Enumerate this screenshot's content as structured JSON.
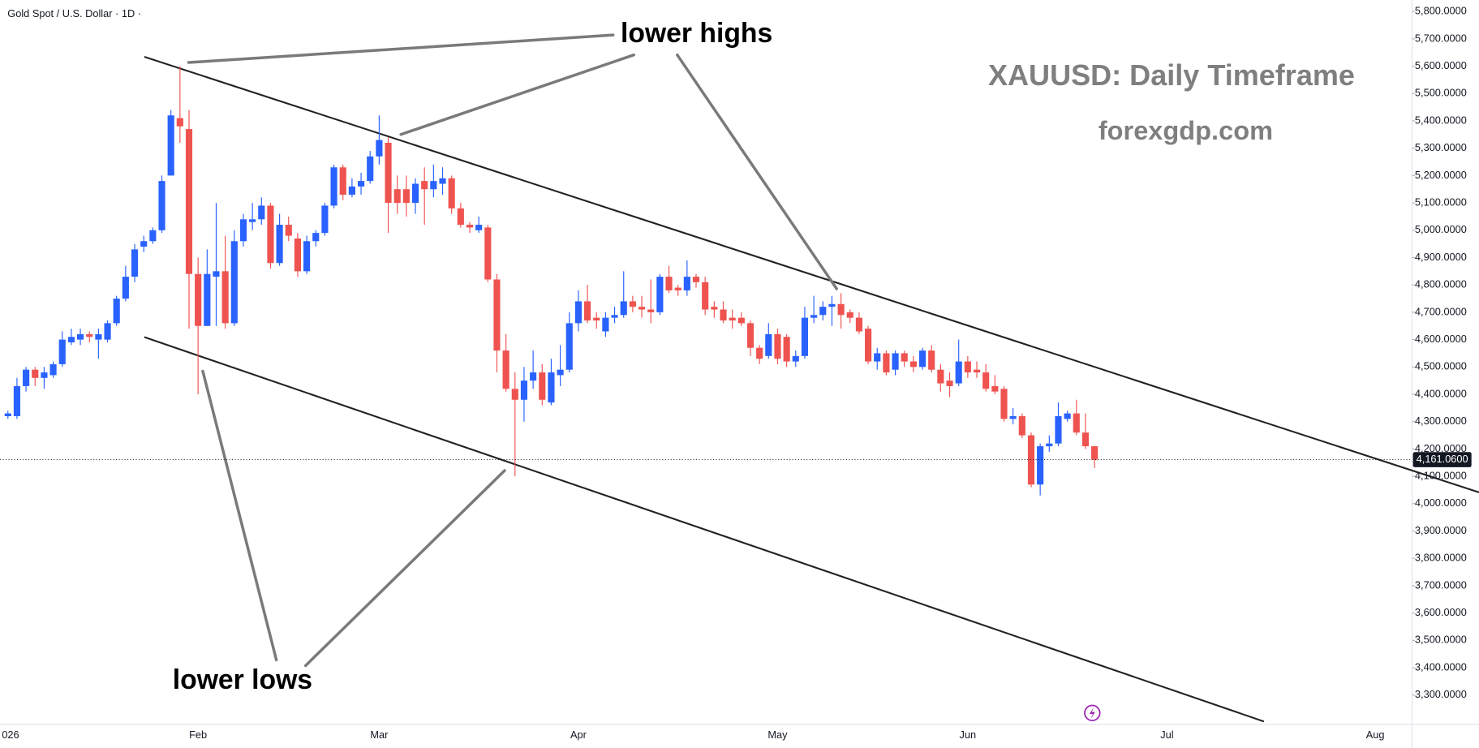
{
  "chart_data": {
    "type": "candlestick",
    "title": "Gold Spot / U.S. Dollar · 1D ·",
    "annotations": [
      "lower highs",
      "lower lows",
      "XAUUSD: Daily Timeframe",
      "forexgdp.com"
    ],
    "categories": [
      "026",
      null,
      null,
      null,
      null,
      null,
      null,
      null,
      null,
      null,
      null,
      null,
      null,
      null,
      null,
      null,
      null,
      null,
      null,
      null,
      null,
      "Feb",
      null,
      null,
      null,
      null,
      null,
      null,
      null,
      null,
      null,
      null,
      null,
      null,
      null,
      null,
      null,
      null,
      null,
      null,
      null,
      "Mar",
      null,
      null,
      null,
      null,
      null,
      null,
      null,
      null,
      null,
      null,
      null,
      null,
      null,
      null,
      null,
      null,
      null,
      null,
      null,
      null,
      null,
      "Apr",
      null,
      null,
      null,
      null,
      null,
      null,
      null,
      null,
      null,
      null,
      null,
      null,
      null,
      null,
      null,
      null,
      null,
      null,
      null,
      null,
      null,
      "May",
      null,
      null,
      null,
      null,
      null,
      null,
      null,
      null,
      null,
      null,
      null,
      null,
      null,
      null,
      null,
      null,
      null,
      null,
      null,
      null,
      "Jun",
      null,
      null,
      null,
      null,
      null,
      null,
      null,
      null,
      null,
      null,
      null,
      null,
      null,
      null,
      null,
      null,
      null,
      null,
      null,
      null,
      null,
      "Jul",
      null,
      null,
      null,
      null,
      null,
      null,
      null,
      null,
      null,
      null,
      null,
      null,
      null,
      null,
      null,
      null,
      null,
      null,
      null,
      null,
      null,
      null,
      "Aug"
    ],
    "open": [
      4320,
      4320,
      4430,
      4490,
      4460,
      4470,
      4510,
      4590,
      4600,
      4620,
      4600,
      4600,
      4660,
      4750,
      4830,
      4940,
      4960,
      5000,
      5200,
      5410,
      5370,
      4840,
      4650,
      4830,
      4850,
      4660,
      4960,
      5030,
      5040,
      5090,
      4880,
      5020,
      4970,
      4850,
      4960,
      4990,
      5090,
      5230,
      5130,
      5160,
      5180,
      5270,
      5320,
      5150,
      5150,
      5100,
      5180,
      5150,
      5170,
      5190,
      5080,
      5020,
      5000,
      5010,
      4820,
      4560,
      4420,
      4380,
      4450,
      4480,
      4370,
      4470,
      4490,
      4660,
      4740,
      4680,
      4630,
      4680,
      4690,
      4740,
      4720,
      4710,
      4700,
      4830,
      4790,
      4780,
      4830,
      4810,
      4720,
      4710,
      4680,
      4680,
      4660,
      4570,
      4540,
      4620,
      4610,
      4520,
      4540,
      4680,
      4690,
      4720,
      4730,
      4700,
      4680,
      4640,
      4520,
      4550,
      4490,
      4550,
      4520,
      4500,
      4560,
      4490,
      4450,
      4440,
      4520,
      4490,
      4480,
      4430,
      4420,
      4310,
      4320,
      4250,
      4070,
      4210,
      4220,
      4310,
      4330,
      4260,
      4210,
      null,
      null,
      null,
      null,
      null,
      null,
      null,
      null,
      null,
      null,
      null,
      null,
      null,
      null,
      null,
      null,
      null,
      null,
      null,
      null,
      null,
      null,
      null,
      null,
      null,
      null,
      null,
      null,
      null,
      null,
      null
    ],
    "high": [
      4340,
      4460,
      4500,
      4500,
      4500,
      4520,
      4630,
      4640,
      4640,
      4630,
      4640,
      4670,
      4760,
      4870,
      4950,
      4980,
      5010,
      5200,
      5440,
      5600,
      5440,
      4900,
      4930,
      5100,
      4980,
      5000,
      5060,
      5100,
      5120,
      5100,
      5060,
      5050,
      4990,
      4980,
      5000,
      5100,
      5240,
      5240,
      5190,
      5210,
      5290,
      5420,
      5340,
      5200,
      5200,
      5190,
      5230,
      5240,
      5230,
      5200,
      5100,
      5030,
      5050,
      5020,
      4840,
      4620,
      4480,
      4500,
      4560,
      4510,
      4530,
      4580,
      4700,
      4780,
      4800,
      4700,
      4700,
      4720,
      4850,
      4760,
      4760,
      4820,
      4840,
      4870,
      4800,
      4890,
      4840,
      4830,
      4740,
      4740,
      4710,
      4700,
      4670,
      4580,
      4660,
      4640,
      4620,
      4560,
      4720,
      4760,
      4740,
      4760,
      4770,
      4710,
      4700,
      4650,
      4570,
      4560,
      4560,
      4560,
      4540,
      4570,
      4580,
      4510,
      4480,
      4600,
      4540,
      4520,
      4510,
      4470,
      4430,
      4350,
      4330,
      4260,
      4220,
      4250,
      4370,
      4340,
      4380,
      4330,
      4210,
      null,
      null,
      null,
      null,
      null,
      null,
      null,
      null,
      null,
      null,
      null,
      null,
      null,
      null,
      null,
      null,
      null,
      null,
      null,
      null,
      null,
      null,
      null,
      null,
      null,
      null,
      null,
      null,
      null,
      null,
      null
    ],
    "low": [
      4310,
      4310,
      4410,
      4430,
      4420,
      4460,
      4500,
      4580,
      4580,
      4590,
      4530,
      4590,
      4650,
      4740,
      4810,
      4920,
      4950,
      4990,
      5200,
      5320,
      4640,
      4400,
      4650,
      4650,
      4640,
      4650,
      4940,
      5000,
      5020,
      4860,
      4870,
      4960,
      4830,
      4840,
      4940,
      4980,
      5080,
      5110,
      5120,
      5130,
      5170,
      5240,
      4990,
      5060,
      5050,
      5060,
      5020,
      5120,
      5130,
      5060,
      5010,
      4990,
      4990,
      4810,
      4480,
      4410,
      4100,
      4300,
      4420,
      4360,
      4360,
      4430,
      4480,
      4630,
      4660,
      4640,
      4610,
      4660,
      4680,
      4700,
      4680,
      4660,
      4690,
      4770,
      4760,
      4760,
      4790,
      4690,
      4680,
      4660,
      4640,
      4650,
      4540,
      4510,
      4530,
      4510,
      4500,
      4500,
      4530,
      4660,
      4670,
      4650,
      4640,
      4660,
      4620,
      4510,
      4490,
      4470,
      4470,
      4500,
      4480,
      4490,
      4480,
      4410,
      4390,
      4430,
      4460,
      4460,
      4410,
      4400,
      4300,
      4290,
      4240,
      4060,
      4030,
      4190,
      4210,
      4300,
      4250,
      4200,
      4130,
      null,
      null,
      null,
      null,
      null,
      null,
      null,
      null,
      null,
      null,
      null,
      null,
      null,
      null,
      null,
      null,
      null,
      null,
      null,
      null,
      null,
      null,
      null,
      null,
      null,
      null,
      null,
      null,
      null,
      null,
      null
    ],
    "close": [
      4330,
      4430,
      4490,
      4460,
      4480,
      4510,
      4600,
      4610,
      4620,
      4610,
      4620,
      4660,
      4750,
      4830,
      4930,
      4960,
      5000,
      5180,
      5420,
      5380,
      4840,
      4650,
      4840,
      4850,
      4660,
      4960,
      5040,
      5040,
      5090,
      4880,
      5020,
      4980,
      4850,
      4960,
      4990,
      5090,
      5230,
      5130,
      5160,
      5180,
      5270,
      5330,
      5100,
      5100,
      5100,
      5170,
      5150,
      5180,
      5190,
      5080,
      5020,
      5010,
      5020,
      4820,
      4560,
      4420,
      4380,
      4450,
      4480,
      4380,
      4480,
      4490,
      4660,
      4740,
      4670,
      4670,
      4680,
      4690,
      4740,
      4720,
      4710,
      4700,
      4830,
      4780,
      4780,
      4830,
      4810,
      4710,
      4710,
      4670,
      4670,
      4660,
      4570,
      4530,
      4620,
      4530,
      4520,
      4540,
      4680,
      4690,
      4720,
      4730,
      4690,
      4680,
      4630,
      4520,
      4550,
      4480,
      4550,
      4520,
      4500,
      4560,
      4490,
      4440,
      4430,
      4520,
      4480,
      4480,
      4420,
      4410,
      4310,
      4320,
      4250,
      4070,
      4210,
      4220,
      4320,
      4330,
      4260,
      4210,
      4161.06,
      null,
      null,
      null,
      null,
      null,
      null,
      null,
      null,
      null,
      null,
      null,
      null,
      null,
      null,
      null,
      null,
      null,
      null,
      null,
      null,
      null,
      null,
      null,
      null,
      null,
      null,
      null,
      null,
      null,
      null,
      null
    ],
    "last_label": "4,161.0600",
    "up_color": "#2962ff",
    "down_color": "#ef5350",
    "ylim": [
      3193,
      5842
    ],
    "yticks": [
      {
        "value": 3300,
        "label": "3,300.0000"
      },
      {
        "value": 3400,
        "label": "3,400.0000"
      },
      {
        "value": 3500,
        "label": "3,500.0000"
      },
      {
        "value": 3600,
        "label": "3,600.0000"
      },
      {
        "value": 3700,
        "label": "3,700.0000"
      },
      {
        "value": 3800,
        "label": "3,800.0000"
      },
      {
        "value": 3900,
        "label": "3,900.0000"
      },
      {
        "value": 4000,
        "label": "4,000.0000"
      },
      {
        "value": 4100,
        "label": "4,100.0000"
      },
      {
        "value": 4200,
        "label": "4,200.0000"
      },
      {
        "value": 4300,
        "label": "4,300.0000"
      },
      {
        "value": 4400,
        "label": "4,400.0000"
      },
      {
        "value": 4500,
        "label": "4,500.0000"
      },
      {
        "value": 4600,
        "label": "4,600.0000"
      },
      {
        "value": 4700,
        "label": "4,700.0000"
      },
      {
        "value": 4800,
        "label": "4,800.0000"
      },
      {
        "value": 4900,
        "label": "4,900.0000"
      },
      {
        "value": 5000,
        "label": "5,000.0000"
      },
      {
        "value": 5100,
        "label": "5,100.0000"
      },
      {
        "value": 5200,
        "label": "5,200.0000"
      },
      {
        "value": 5300,
        "label": "5,300.0000"
      },
      {
        "value": 5400,
        "label": "5,400.0000"
      },
      {
        "value": 5500,
        "label": "5,500.0000"
      },
      {
        "value": 5600,
        "label": "5,600.0000"
      },
      {
        "value": 5700,
        "label": "5,700.0000"
      },
      {
        "value": 5800,
        "label": "5,800.0000"
      }
    ],
    "grid": false
  }
}
